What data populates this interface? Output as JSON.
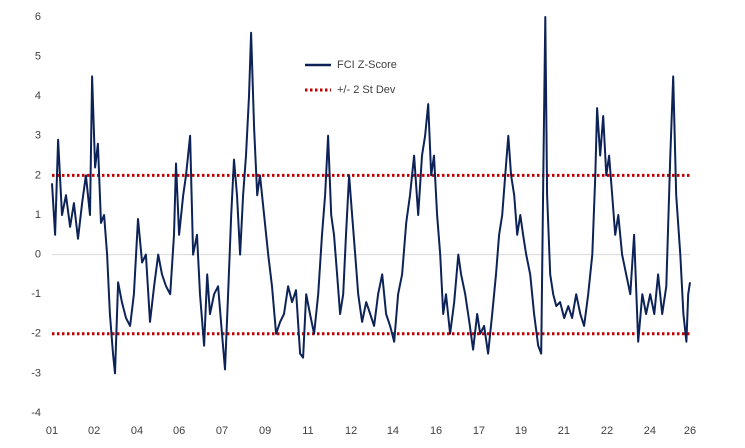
{
  "chart_data": {
    "type": "line",
    "series": [
      {
        "name": "FCI Z-Score",
        "color": "#0d2357",
        "x": [
          1.0,
          1.12,
          1.24,
          1.39,
          1.55,
          1.71,
          1.86,
          2.02,
          2.18,
          2.33,
          2.49,
          2.57,
          2.69,
          2.8,
          2.92,
          3.04,
          3.16,
          3.27,
          3.39,
          3.47,
          3.59,
          3.74,
          3.9,
          4.06,
          4.21,
          4.37,
          4.53,
          4.68,
          4.84,
          5.0,
          5.16,
          5.31,
          5.47,
          5.63,
          5.78,
          5.86,
          5.98,
          6.14,
          6.25,
          6.41,
          6.53,
          6.68,
          6.8,
          6.96,
          7.08,
          7.19,
          7.35,
          7.51,
          7.66,
          7.78,
          7.9,
          8.02,
          8.13,
          8.25,
          8.37,
          8.49,
          8.6,
          8.72,
          8.8,
          8.92,
          9.04,
          9.15,
          9.31,
          9.47,
          9.62,
          9.78,
          9.94,
          10.09,
          10.25,
          10.41,
          10.56,
          10.72,
          10.84,
          10.96,
          11.11,
          11.27,
          11.43,
          11.58,
          11.7,
          11.82,
          11.94,
          12.05,
          12.17,
          12.29,
          12.41,
          12.52,
          12.64,
          12.76,
          12.88,
          13.0,
          13.15,
          13.31,
          13.47,
          13.62,
          13.78,
          13.94,
          14.09,
          14.25,
          14.41,
          14.56,
          14.72,
          14.88,
          15.03,
          15.19,
          15.35,
          15.5,
          15.62,
          15.74,
          15.86,
          15.97,
          16.09,
          16.21,
          16.33,
          16.44,
          16.6,
          16.76,
          16.92,
          17.03,
          17.19,
          17.35,
          17.5,
          17.66,
          17.78,
          17.93,
          18.09,
          18.25,
          18.4,
          18.52,
          18.64,
          18.76,
          18.88,
          18.99,
          19.11,
          19.23,
          19.35,
          19.46,
          19.58,
          19.74,
          19.89,
          20.05,
          20.17,
          20.25,
          20.33,
          20.4,
          20.52,
          20.64,
          20.76,
          20.91,
          21.07,
          21.23,
          21.38,
          21.54,
          21.7,
          21.85,
          22.01,
          22.17,
          22.29,
          22.36,
          22.48,
          22.6,
          22.72,
          22.83,
          22.95,
          23.07,
          23.19,
          23.34,
          23.5,
          23.66,
          23.81,
          23.97,
          24.13,
          24.28,
          24.44,
          24.6,
          24.75,
          24.91,
          25.07,
          25.23,
          25.34,
          25.46,
          25.62,
          25.74,
          25.86,
          25.93,
          26.0
        ],
        "values": [
          1.8,
          0.5,
          2.9,
          1.0,
          1.5,
          0.7,
          1.3,
          0.4,
          1.3,
          2.0,
          1.0,
          4.5,
          2.2,
          2.8,
          0.8,
          1.0,
          0.0,
          -1.5,
          -2.5,
          -3.0,
          -0.7,
          -1.2,
          -1.6,
          -1.8,
          -1.0,
          0.9,
          -0.2,
          0.0,
          -1.7,
          -0.8,
          0.0,
          -0.5,
          -0.8,
          -1.0,
          0.5,
          2.3,
          0.5,
          1.5,
          2.0,
          3.0,
          0.0,
          0.5,
          -1.0,
          -2.3,
          -0.5,
          -1.5,
          -1.0,
          -0.8,
          -2.0,
          -2.9,
          -1.0,
          1.0,
          2.4,
          1.5,
          0.0,
          1.5,
          2.5,
          4.0,
          5.6,
          3.2,
          1.5,
          2.0,
          1.0,
          0.0,
          -0.8,
          -2.0,
          -1.7,
          -1.5,
          -0.8,
          -1.2,
          -0.9,
          -2.5,
          -2.6,
          -1.0,
          -1.5,
          -2.0,
          -1.0,
          0.5,
          1.5,
          3.0,
          1.0,
          0.5,
          -0.5,
          -1.5,
          -1.0,
          0.5,
          2.0,
          1.0,
          0.0,
          -1.0,
          -1.7,
          -1.2,
          -1.5,
          -1.8,
          -1.0,
          -0.5,
          -1.5,
          -1.8,
          -2.2,
          -1.0,
          -0.5,
          0.8,
          1.5,
          2.5,
          1.0,
          2.5,
          3.0,
          3.8,
          2.0,
          2.5,
          1.0,
          0.0,
          -1.5,
          -1.0,
          -2.0,
          -1.2,
          0.0,
          -0.5,
          -1.0,
          -1.7,
          -2.4,
          -1.5,
          -2.0,
          -1.8,
          -2.5,
          -1.5,
          -0.5,
          0.5,
          1.0,
          2.0,
          3.0,
          2.0,
          1.5,
          0.5,
          1.0,
          0.5,
          0.0,
          -0.5,
          -1.5,
          -2.3,
          -2.5,
          2.0,
          6.0,
          1.5,
          -0.5,
          -1.0,
          -1.3,
          -1.2,
          -1.6,
          -1.3,
          -1.6,
          -1.0,
          -1.5,
          -1.8,
          -1.0,
          0.0,
          2.0,
          3.7,
          2.5,
          3.5,
          2.0,
          2.5,
          1.5,
          0.5,
          1.0,
          0.0,
          -0.5,
          -1.0,
          0.5,
          -2.2,
          -1.0,
          -1.5,
          -1.0,
          -1.5,
          -0.5,
          -1.5,
          -0.8,
          2.5,
          4.5,
          1.5,
          0.0,
          -1.5,
          -2.2,
          -1.0,
          -0.7
        ]
      }
    ],
    "reference_lines": {
      "name": "+/- 2 St Dev",
      "color": "#c00000",
      "values": [
        2,
        -2
      ]
    },
    "xlim": [
      1,
      26
    ],
    "xticks": [
      {
        "value": 1,
        "label": "01"
      },
      {
        "value": 2.65,
        "label": "02"
      },
      {
        "value": 4.33,
        "label": "04"
      },
      {
        "value": 5.98,
        "label": "06"
      },
      {
        "value": 7.66,
        "label": "07"
      },
      {
        "value": 9.35,
        "label": "09"
      },
      {
        "value": 11.03,
        "label": "11"
      },
      {
        "value": 12.72,
        "label": "12"
      },
      {
        "value": 14.36,
        "label": "14"
      },
      {
        "value": 16.05,
        "label": "16"
      },
      {
        "value": 17.73,
        "label": "17"
      },
      {
        "value": 19.38,
        "label": "19"
      },
      {
        "value": 21.06,
        "label": "21"
      },
      {
        "value": 22.75,
        "label": "22"
      },
      {
        "value": 24.43,
        "label": "24"
      },
      {
        "value": 26,
        "label": "26"
      }
    ],
    "ylim": [
      -4,
      6
    ],
    "yticks": [
      -4,
      -3,
      -2,
      -1,
      0,
      1,
      2,
      3,
      4,
      5,
      6
    ],
    "zero_line": true,
    "legend": "top-center"
  }
}
